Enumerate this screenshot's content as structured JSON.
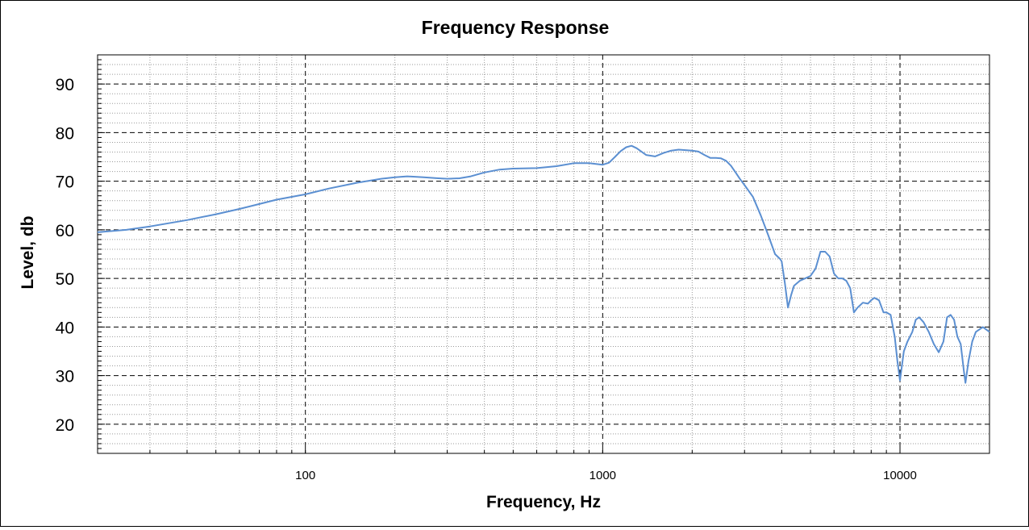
{
  "chart_data": {
    "type": "line",
    "title": "Frequency Response",
    "xlabel": "Frequency, Hz",
    "ylabel": "Level, db",
    "x_scale": "log",
    "xlim": [
      20,
      20000
    ],
    "ylim": [
      14,
      96
    ],
    "x_tick_labels": [
      "100",
      "1000",
      "10000"
    ],
    "y_tick_labels": [
      "20",
      "30",
      "40",
      "50",
      "60",
      "70",
      "80",
      "90"
    ],
    "grid": true,
    "line_color": "#5b8fd1",
    "series": [
      {
        "x": [
          20,
          25,
          30,
          40,
          50,
          60,
          70,
          80,
          100,
          120,
          150,
          180,
          200,
          220,
          250,
          280,
          300,
          330,
          360,
          400,
          450,
          500,
          600,
          700,
          800,
          900,
          1000,
          1050,
          1100,
          1150,
          1200,
          1250,
          1300,
          1400,
          1500,
          1600,
          1700,
          1800,
          1900,
          2000,
          2100,
          2200,
          2300,
          2400,
          2500,
          2600,
          2700,
          2800,
          2900,
          3000,
          3200,
          3400,
          3600,
          3800,
          3950,
          4000,
          4100,
          4200,
          4300,
          4400,
          4600,
          4800,
          5000,
          5200,
          5400,
          5600,
          5800,
          6000,
          6200,
          6400,
          6600,
          6800,
          7000,
          7200,
          7500,
          7800,
          8000,
          8200,
          8500,
          8800,
          9000,
          9300,
          9600,
          9800,
          10000,
          10300,
          10600,
          11000,
          11300,
          11600,
          12000,
          12500,
          13000,
          13500,
          14000,
          14400,
          14800,
          15200,
          15600,
          16000,
          16400,
          16600,
          17000,
          17500,
          18000,
          19000,
          20000
        ],
        "y": [
          59.5,
          60.0,
          60.7,
          62.0,
          63.2,
          64.3,
          65.3,
          66.2,
          67.3,
          68.5,
          69.7,
          70.5,
          70.8,
          71.0,
          70.8,
          70.6,
          70.5,
          70.6,
          71.0,
          71.8,
          72.4,
          72.6,
          72.7,
          73.1,
          73.7,
          73.7,
          73.4,
          73.8,
          75.0,
          76.2,
          77.0,
          77.3,
          76.8,
          75.4,
          75.1,
          75.8,
          76.3,
          76.5,
          76.4,
          76.3,
          76.1,
          75.4,
          74.8,
          74.8,
          74.7,
          74.2,
          73.2,
          71.8,
          70.4,
          69.2,
          66.8,
          63.0,
          59.0,
          55.0,
          54.0,
          53.5,
          49.0,
          44.0,
          46.5,
          48.5,
          49.5,
          50.0,
          50.5,
          52.0,
          55.5,
          55.5,
          54.5,
          51.0,
          50.0,
          50.0,
          49.5,
          48.0,
          43.0,
          44.0,
          45.0,
          44.8,
          45.5,
          46.0,
          45.5,
          43.0,
          43.0,
          42.5,
          38.0,
          33.0,
          29.0,
          35.0,
          37.0,
          39.0,
          41.5,
          42.0,
          41.0,
          39.0,
          36.5,
          34.8,
          37.0,
          42.0,
          42.5,
          41.5,
          38.0,
          36.5,
          31.0,
          28.5,
          33.0,
          37.0,
          39.0,
          40.0,
          39.0
        ]
      }
    ]
  }
}
